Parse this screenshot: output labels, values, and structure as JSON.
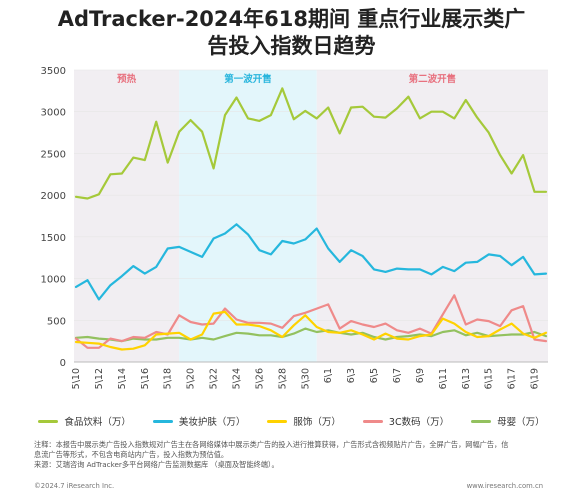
{
  "title_line1": "AdTracker-2024年618期间 重点行业展示类广",
  "title_line2": "告投入指数日趋势",
  "note_line1": "注释：本报告中展示类广告投入指数规对广告主在各网络媒体中展示类广告的投入进行推算获得，广告形式含视频贴片广告，全屏广告，网幅广告，信",
  "note_line2": "息流广告等形式，不包含电商站内广告，投入指数为预估值。",
  "note_line3": "来源：艾瑞咨询 AdTracker多平台网络广告监测数据库 （桌面及智能终端）。",
  "footer_left": "©2024.7 iResearch Inc.",
  "footer_right": "www.iresearch.com.cn",
  "colors": {
    "phase_pre": "#f1eef2",
    "phase_first": "#e3f6fb",
    "phase_second": "#f1eef2",
    "phase_label_pink": "#e8717f",
    "phase_label_blue": "#27b5dd",
    "axis": "#bbbbbb",
    "grid": "#e6e6e6"
  },
  "chart_data": {
    "type": "line",
    "ylim": [
      0,
      3500
    ],
    "yticks": [
      0,
      500,
      1000,
      1500,
      2000,
      2500,
      3000,
      3500
    ],
    "x_tick_labels": [
      "5\\10",
      "5\\12",
      "5\\14",
      "5\\16",
      "5\\18",
      "5\\20",
      "5\\22",
      "5\\24",
      "5\\26",
      "5\\28",
      "5\\30",
      "6\\1",
      "6\\3",
      "6\\5",
      "6\\7",
      "6\\9",
      "6\\11",
      "6\\13",
      "6\\15",
      "6\\17",
      "6\\19"
    ],
    "dates": [
      "5/10",
      "5/11",
      "5/12",
      "5/13",
      "5/14",
      "5/15",
      "5/16",
      "5/17",
      "5/18",
      "5/19",
      "5/20",
      "5/21",
      "5/22",
      "5/23",
      "5/24",
      "5/25",
      "5/26",
      "5/27",
      "5/28",
      "5/29",
      "5/30",
      "5/31",
      "6/1",
      "6/2",
      "6/3",
      "6/4",
      "6/5",
      "6/6",
      "6/7",
      "6/8",
      "6/9",
      "6/10",
      "6/11",
      "6/12",
      "6/13",
      "6/14",
      "6/15",
      "6/16",
      "6/17",
      "6/18",
      "6/19",
      "6/20"
    ],
    "phases": [
      {
        "label": "预热",
        "start": "5/10",
        "end": "5/19",
        "color_key": "phase_pre",
        "label_color_key": "phase_label_pink"
      },
      {
        "label": "第一波开售",
        "start": "5/19",
        "end": "5/31",
        "color_key": "phase_first",
        "label_color_key": "phase_label_blue"
      },
      {
        "label": "第二波开售",
        "start": "5/31",
        "end": "6/20",
        "color_key": "phase_second",
        "label_color_key": "phase_label_pink"
      }
    ],
    "series": [
      {
        "name": "食品饮料（万）",
        "color": "#a5c93a",
        "values": [
          1980,
          1960,
          2010,
          2250,
          2260,
          2450,
          2420,
          2880,
          2390,
          2760,
          2900,
          2760,
          2320,
          2960,
          3170,
          2920,
          2890,
          2960,
          3280,
          2910,
          3010,
          2920,
          3050,
          2740,
          3050,
          3060,
          2940,
          2930,
          3040,
          3180,
          2920,
          3000,
          3000,
          2920,
          3140,
          2930,
          2750,
          2480,
          2260,
          2480,
          2040,
          2040
        ]
      },
      {
        "name": "美妆护肤（万）",
        "color": "#26b7dd",
        "values": [
          900,
          980,
          750,
          920,
          1030,
          1150,
          1060,
          1140,
          1360,
          1380,
          1320,
          1260,
          1480,
          1540,
          1650,
          1530,
          1340,
          1290,
          1450,
          1420,
          1470,
          1600,
          1360,
          1200,
          1340,
          1270,
          1110,
          1080,
          1120,
          1110,
          1110,
          1050,
          1140,
          1090,
          1190,
          1200,
          1290,
          1270,
          1160,
          1260,
          1050,
          1060
        ]
      },
      {
        "name": "服饰（万）",
        "color": "#ffd200",
        "values": [
          240,
          230,
          220,
          180,
          150,
          160,
          200,
          330,
          340,
          350,
          270,
          330,
          580,
          600,
          450,
          450,
          430,
          380,
          300,
          440,
          560,
          420,
          360,
          350,
          380,
          330,
          270,
          340,
          280,
          270,
          310,
          330,
          520,
          460,
          360,
          300,
          310,
          390,
          460,
          340,
          290,
          350
        ]
      },
      {
        "name": "3C数码（万）",
        "color": "#ef8a8a",
        "values": [
          280,
          170,
          170,
          280,
          250,
          300,
          290,
          360,
          330,
          560,
          480,
          450,
          460,
          640,
          510,
          470,
          470,
          460,
          410,
          550,
          590,
          640,
          690,
          400,
          490,
          450,
          420,
          460,
          380,
          350,
          400,
          340,
          570,
          800,
          450,
          510,
          490,
          430,
          620,
          670,
          270,
          250
        ]
      },
      {
        "name": "母婴（万）",
        "color": "#93c15f",
        "values": [
          290,
          300,
          280,
          270,
          250,
          280,
          270,
          270,
          290,
          290,
          270,
          290,
          270,
          310,
          350,
          340,
          320,
          320,
          300,
          340,
          400,
          360,
          380,
          350,
          330,
          350,
          300,
          270,
          300,
          310,
          330,
          310,
          360,
          380,
          320,
          350,
          310,
          320,
          330,
          330,
          360,
          310
        ]
      }
    ]
  }
}
